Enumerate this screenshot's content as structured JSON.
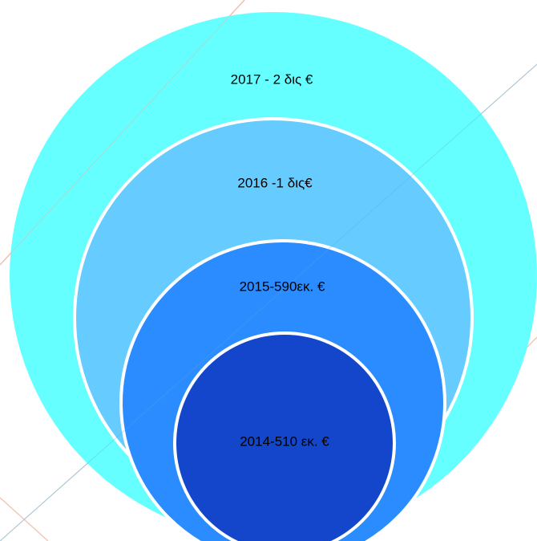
{
  "nodes": [
    {
      "label": "2017 - 2 δις €"
    },
    {
      "label": "2016 -1 δις€"
    },
    {
      "label": "2015-590εκ. €"
    },
    {
      "label": "2014-510 εκ. €"
    }
  ]
}
